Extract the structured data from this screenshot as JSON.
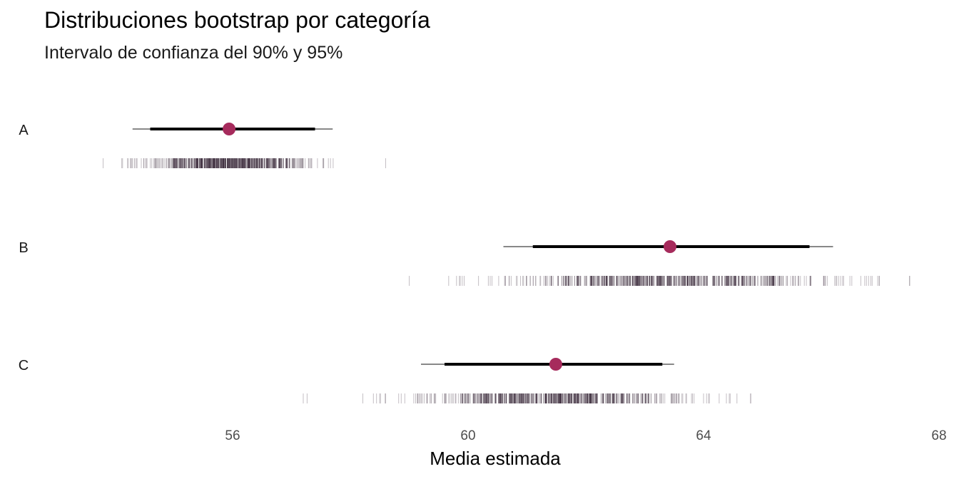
{
  "chart_data": {
    "type": "scatter",
    "title": "Distribuciones bootstrap por categoría",
    "subtitle": "Intervalo de confianza del 90% y 95%",
    "xlabel": "Media estimada",
    "ylabel": "",
    "xlim": [
      52.8,
      68.0
    ],
    "xticks": [
      56,
      60,
      64,
      68
    ],
    "xtick_labels": [
      "56",
      "60",
      "64",
      "68"
    ],
    "grid": false,
    "colors": {
      "point": "#a62b5c",
      "interval": "#000000",
      "rug": "#3b2a3a"
    },
    "categories": [
      "A",
      "B",
      "C"
    ],
    "series": [
      {
        "name": "A",
        "mean": 55.94,
        "ci90": [
          54.6,
          57.4
        ],
        "ci95": [
          54.3,
          57.7
        ],
        "rug_range": [
          53.8,
          58.6
        ],
        "rug_core": [
          54.1,
          57.8
        ]
      },
      {
        "name": "B",
        "mean": 63.43,
        "ci90": [
          61.1,
          65.8
        ],
        "ci95": [
          60.6,
          66.2
        ],
        "rug_range": [
          59.0,
          67.5
        ],
        "rug_core": [
          59.6,
          67.0
        ]
      },
      {
        "name": "C",
        "mean": 61.49,
        "ci90": [
          59.6,
          63.3
        ],
        "ci95": [
          59.2,
          63.5
        ],
        "rug_range": [
          57.2,
          64.8
        ],
        "rug_core": [
          58.3,
          64.3
        ]
      }
    ]
  }
}
